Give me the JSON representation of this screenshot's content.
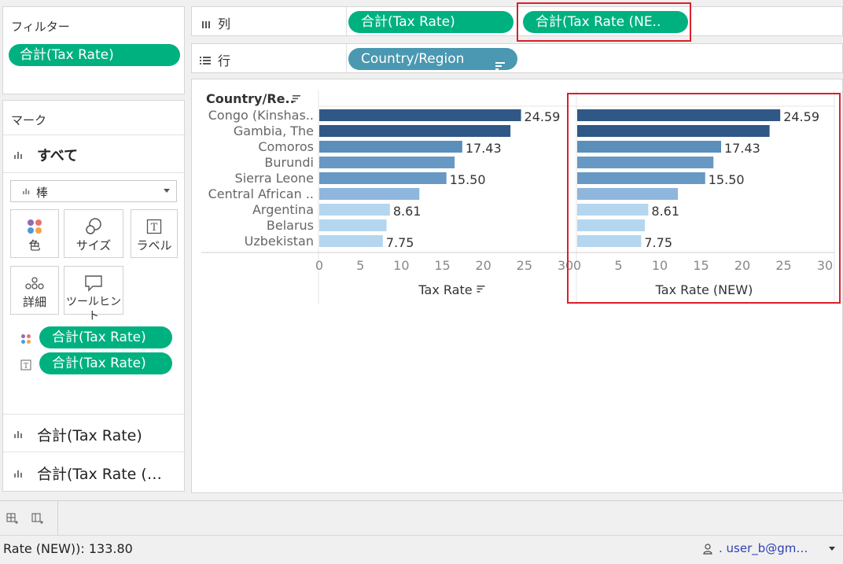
{
  "filters": {
    "title": "フィルター",
    "pill": "合計(Tax Rate)"
  },
  "marks": {
    "title": "マーク",
    "all_label": "すべて",
    "mark_type": "棒",
    "buttons": {
      "color": "色",
      "size": "サイズ",
      "label": "ラベル",
      "detail": "詳細",
      "tooltip": "ツールヒント"
    },
    "assigned": [
      "合計(Tax Rate)",
      "合計(Tax Rate)"
    ],
    "cards": [
      "合計(Tax Rate)",
      "合計(Tax Rate (…"
    ]
  },
  "shelves": {
    "columns_label": "列",
    "rows_label": "行",
    "columns_pills": [
      "合計(Tax Rate)",
      "合計(Tax Rate (NE.."
    ],
    "rows_pill": "Country/Region"
  },
  "chart_data": {
    "type": "bar",
    "row_header": "Country/Re..",
    "categories": [
      "Congo (Kinshas..",
      "Gambia, The",
      "Comoros",
      "Burundi",
      "Sierra Leone",
      "Central African ..",
      "Argentina",
      "Belarus",
      "Uzbekistan"
    ],
    "values": [
      24.59,
      23.3,
      17.43,
      16.5,
      15.5,
      12.2,
      8.61,
      8.2,
      7.75
    ],
    "data_labels": [
      "24.59",
      "",
      "17.43",
      "",
      "15.50",
      "",
      "8.61",
      "",
      "7.75"
    ],
    "bar_colors": [
      "#2f5886",
      "#2f5886",
      "#5a8ebb",
      "#6898c4",
      "#6898c4",
      "#8fb6dc",
      "#b4d6ee",
      "#b4d6ee",
      "#b4d6ee"
    ],
    "panes": [
      {
        "xlabel": "Tax Rate"
      },
      {
        "xlabel": "Tax Rate (NEW)"
      }
    ],
    "xticks": [
      "0",
      "5",
      "10",
      "15",
      "20",
      "25",
      "30"
    ],
    "xlim": [
      0,
      30
    ]
  },
  "status": {
    "text": "Rate (NEW)): 133.80",
    "user": ". user_b@gm…"
  }
}
